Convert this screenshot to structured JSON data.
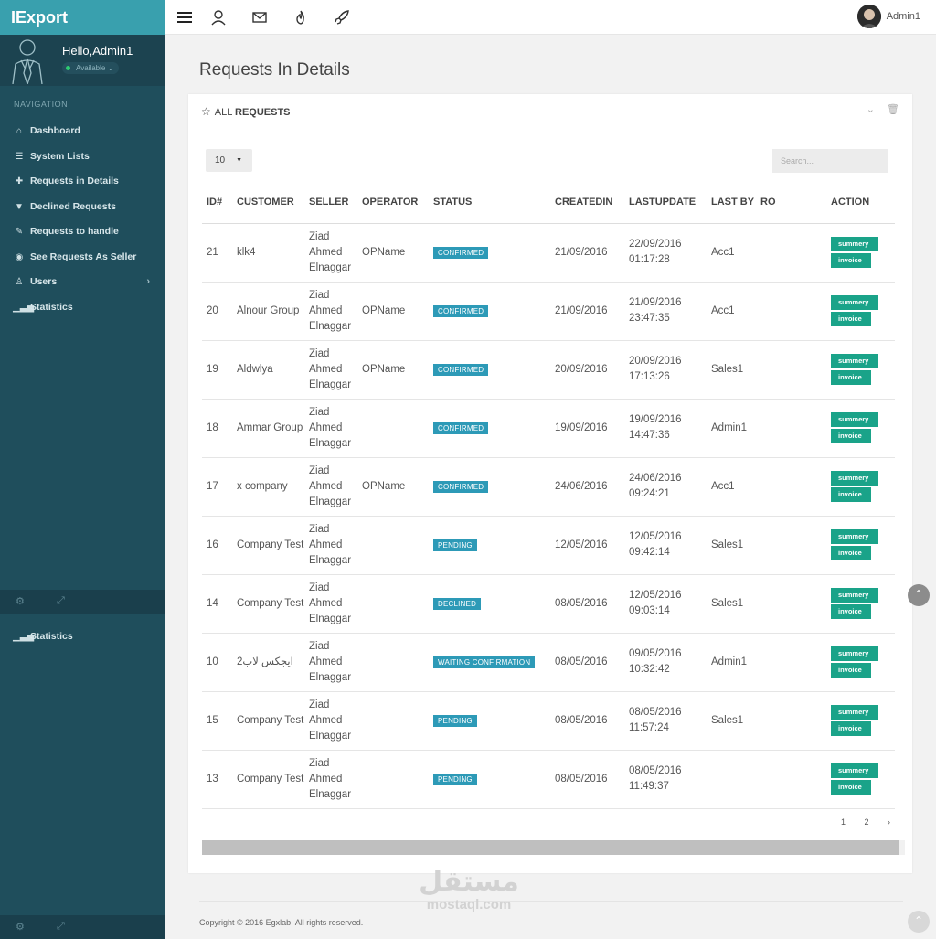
{
  "sidebar": {
    "brand": "IExport",
    "user": {
      "greeting": "Hello,Admin1",
      "status": "Available"
    },
    "nav_heading": "NAVIGATION",
    "items": [
      {
        "label": "Dashboard",
        "icon": "home-icon"
      },
      {
        "label": "System Lists",
        "icon": "list-icon"
      },
      {
        "label": "Requests in Details",
        "icon": "puzzle-icon"
      },
      {
        "label": "Declined Requests",
        "icon": "thumbs-down-icon"
      },
      {
        "label": "Requests to handle",
        "icon": "wrench-icon"
      },
      {
        "label": "See Requests As Seller",
        "icon": "eye-icon"
      },
      {
        "label": "Users",
        "icon": "user-icon"
      },
      {
        "label": "Statistics",
        "icon": "bar-chart-icon"
      }
    ],
    "extra_item": {
      "label": "Statistics",
      "icon": "bar-chart-icon"
    }
  },
  "topbar": {
    "user_name": "Admin1"
  },
  "page": {
    "title": "Requests In Details"
  },
  "panel": {
    "title_prefix": "ALL",
    "title_bold": "REQUESTS",
    "page_length": "10",
    "search_placeholder": "Search..."
  },
  "table": {
    "headers": {
      "id": "ID#",
      "customer": "CUSTOMER",
      "seller": "SELLER",
      "operator": "OPERATOR",
      "status": "STATUS",
      "createdin": "CREATEDIN",
      "lastupdate": "LASTUPDATE",
      "lastby": "LAST BY",
      "ro": "RO",
      "action": "ACTION"
    },
    "summery_label": "summery",
    "invoice_label": "invoice",
    "rows": [
      {
        "id": "21",
        "customer": "klk4",
        "seller": "Ziad Ahmed Elnaggar",
        "operator": "OPName",
        "status": "CONFIRMED",
        "createdin": "21/09/2016",
        "lastupdate": "22/09/2016 01:17:28",
        "lastby": "Acc1",
        "ro": ""
      },
      {
        "id": "20",
        "customer": "Alnour Group",
        "seller": "Ziad Ahmed Elnaggar",
        "operator": "OPName",
        "status": "CONFIRMED",
        "createdin": "21/09/2016",
        "lastupdate": "21/09/2016 23:47:35",
        "lastby": "Acc1",
        "ro": ""
      },
      {
        "id": "19",
        "customer": "Aldwlya",
        "seller": "Ziad Ahmed Elnaggar",
        "operator": "OPName",
        "status": "CONFIRMED",
        "createdin": "20/09/2016",
        "lastupdate": "20/09/2016 17:13:26",
        "lastby": "Sales1",
        "ro": ""
      },
      {
        "id": "18",
        "customer": "Ammar Group",
        "seller": "Ziad Ahmed Elnaggar",
        "operator": "",
        "status": "CONFIRMED",
        "createdin": "19/09/2016",
        "lastupdate": "19/09/2016 14:47:36",
        "lastby": "Admin1",
        "ro": ""
      },
      {
        "id": "17",
        "customer": "x company",
        "seller": "Ziad Ahmed Elnaggar",
        "operator": "OPName",
        "status": "CONFIRMED",
        "createdin": "24/06/2016",
        "lastupdate": "24/06/2016 09:24:21",
        "lastby": "Acc1",
        "ro": ""
      },
      {
        "id": "16",
        "customer": "Company Test",
        "seller": "Ziad Ahmed Elnaggar",
        "operator": "",
        "status": "PENDING",
        "createdin": "12/05/2016",
        "lastupdate": "12/05/2016 09:42:14",
        "lastby": "Sales1",
        "ro": ""
      },
      {
        "id": "14",
        "customer": "Company Test",
        "seller": "Ziad Ahmed Elnaggar",
        "operator": "",
        "status": "DECLINED",
        "createdin": "08/05/2016",
        "lastupdate": "12/05/2016 09:03:14",
        "lastby": "Sales1",
        "ro": ""
      },
      {
        "id": "10",
        "customer": "ايجكس لاب2",
        "seller": "Ziad Ahmed Elnaggar",
        "operator": "",
        "status": "WAITING CONFIRMATION",
        "createdin": "08/05/2016",
        "lastupdate": "09/05/2016 10:32:42",
        "lastby": "Admin1",
        "ro": ""
      },
      {
        "id": "15",
        "customer": "Company Test",
        "seller": "Ziad Ahmed Elnaggar",
        "operator": "",
        "status": "PENDING",
        "createdin": "08/05/2016",
        "lastupdate": "08/05/2016 11:57:24",
        "lastby": "Sales1",
        "ro": ""
      },
      {
        "id": "13",
        "customer": "Company Test",
        "seller": "Ziad Ahmed Elnaggar",
        "operator": "",
        "status": "PENDING",
        "createdin": "08/05/2016",
        "lastupdate": "08/05/2016 11:49:37",
        "lastby": "",
        "ro": ""
      }
    ]
  },
  "pagination": {
    "pages": [
      "1",
      "2"
    ],
    "next": "›"
  },
  "footer": {
    "copyright": "Copyright © 2016 Egxlab. All rights reserved."
  },
  "watermark": {
    "arabic": "مستقل",
    "latin": "mostaql.com"
  },
  "colors": {
    "sidebar": "#1f4e5c",
    "brand": "#39a0ae",
    "badge": "#2d9ab7",
    "action_button": "#1aa389",
    "date_text": "#b5534e"
  }
}
